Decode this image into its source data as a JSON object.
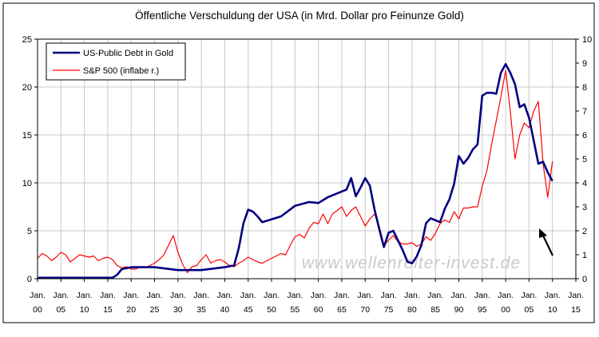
{
  "chart_data": {
    "type": "line",
    "title": "Öffentliche Verschuldung der USA (in Mrd. Dollar pro Feinunze Gold)",
    "watermark": "www.wellenreiter-invest.de",
    "x_tick_labels": [
      [
        "Jan.",
        "00"
      ],
      [
        "Jan.",
        "05"
      ],
      [
        "Jan.",
        "10"
      ],
      [
        "Jan.",
        "15"
      ],
      [
        "Jan.",
        "20"
      ],
      [
        "Jan.",
        "25"
      ],
      [
        "Jan.",
        "30"
      ],
      [
        "Jan.",
        "35"
      ],
      [
        "Jan.",
        "40"
      ],
      [
        "Jan.",
        "45"
      ],
      [
        "Jan.",
        "50"
      ],
      [
        "Jan.",
        "55"
      ],
      [
        "Jan.",
        "60"
      ],
      [
        "Jan.",
        "65"
      ],
      [
        "Jan.",
        "70"
      ],
      [
        "Jan.",
        "75"
      ],
      [
        "Jan.",
        "80"
      ],
      [
        "Jan.",
        "85"
      ],
      [
        "Jan.",
        "90"
      ],
      [
        "Jan.",
        "95"
      ],
      [
        "Jan.",
        "00"
      ],
      [
        "Jan.",
        "05"
      ],
      [
        "Jan.",
        "10"
      ],
      [
        "Jan.",
        "15"
      ]
    ],
    "xlim": [
      1900,
      2015
    ],
    "y_left": {
      "ticks": [
        "0",
        "5",
        "10",
        "15",
        "20",
        "25"
      ],
      "lim": [
        0,
        25
      ]
    },
    "y_right": {
      "ticks": [
        "0",
        "1",
        "2",
        "3",
        "4",
        "5",
        "6",
        "7",
        "8",
        "9",
        "10"
      ],
      "lim": [
        0,
        10
      ]
    },
    "grid": true,
    "legend_position": "top-left",
    "series": [
      {
        "name": "US-Public Debt in Gold",
        "axis": "left",
        "color": "#000080",
        "x": [
          1900,
          1916,
          1917,
          1918,
          1920,
          1925,
          1930,
          1935,
          1940,
          1942,
          1943,
          1944,
          1945,
          1946,
          1947,
          1948,
          1950,
          1952,
          1955,
          1958,
          1960,
          1962,
          1964,
          1966,
          1967,
          1968,
          1969,
          1970,
          1971,
          1972,
          1973,
          1974,
          1975,
          1976,
          1977,
          1978,
          1979,
          1980,
          1981,
          1982,
          1983,
          1984,
          1985,
          1986,
          1987,
          1988,
          1989,
          1990,
          1991,
          1992,
          1993,
          1994,
          1995,
          1996,
          1997,
          1998,
          1999,
          2000,
          2001,
          2002,
          2003,
          2004,
          2005,
          2006,
          2007,
          2008,
          2009,
          2010
        ],
        "values": [
          0.1,
          0.1,
          0.4,
          1.0,
          1.2,
          1.2,
          0.9,
          0.9,
          1.2,
          1.4,
          3.2,
          5.8,
          7.2,
          7.0,
          6.5,
          5.9,
          6.2,
          6.5,
          7.6,
          8.0,
          7.9,
          8.5,
          8.9,
          9.3,
          10.5,
          8.6,
          9.5,
          10.5,
          9.7,
          7.2,
          5.2,
          3.3,
          4.8,
          5.0,
          4.0,
          3.0,
          1.8,
          1.6,
          2.3,
          3.5,
          5.8,
          6.3,
          6.1,
          5.9,
          7.3,
          8.3,
          9.9,
          12.8,
          12.0,
          12.6,
          13.5,
          14.0,
          19.1,
          19.4,
          19.4,
          19.3,
          21.5,
          22.4,
          21.5,
          20.3,
          17.9,
          18.2,
          16.8,
          14.4,
          12.0,
          12.2,
          11.1,
          10.2
        ]
      },
      {
        "name": "S&P 500 (inflabe r.)",
        "axis": "right",
        "color": "#ff0000",
        "x": [
          1900,
          1901,
          1902,
          1903,
          1904,
          1905,
          1906,
          1907,
          1908,
          1909,
          1910,
          1911,
          1912,
          1913,
          1914,
          1915,
          1916,
          1917,
          1918,
          1919,
          1920,
          1921,
          1922,
          1923,
          1924,
          1925,
          1926,
          1927,
          1928,
          1929,
          1930,
          1931,
          1932,
          1933,
          1934,
          1935,
          1936,
          1937,
          1938,
          1939,
          1940,
          1941,
          1942,
          1943,
          1944,
          1945,
          1946,
          1947,
          1948,
          1949,
          1950,
          1951,
          1952,
          1953,
          1954,
          1955,
          1956,
          1957,
          1958,
          1959,
          1960,
          1961,
          1962,
          1963,
          1964,
          1965,
          1966,
          1967,
          1968,
          1969,
          1970,
          1971,
          1972,
          1973,
          1974,
          1975,
          1976,
          1977,
          1978,
          1979,
          1980,
          1981,
          1982,
          1983,
          1984,
          1985,
          1986,
          1987,
          1988,
          1989,
          1990,
          1991,
          1992,
          1993,
          1994,
          1995,
          1996,
          1997,
          1998,
          1999,
          2000,
          2001,
          2002,
          2003,
          2004,
          2005,
          2006,
          2007,
          2008,
          2009,
          2010
        ],
        "values": [
          0.85,
          1.05,
          0.95,
          0.75,
          0.9,
          1.1,
          1.0,
          0.7,
          0.85,
          1.0,
          0.95,
          0.9,
          0.95,
          0.75,
          0.85,
          0.9,
          0.8,
          0.55,
          0.45,
          0.5,
          0.4,
          0.4,
          0.5,
          0.45,
          0.55,
          0.65,
          0.8,
          1.0,
          1.4,
          1.8,
          1.1,
          0.6,
          0.25,
          0.5,
          0.55,
          0.8,
          1.0,
          0.65,
          0.75,
          0.8,
          0.7,
          0.55,
          0.5,
          0.65,
          0.75,
          0.9,
          0.8,
          0.7,
          0.65,
          0.75,
          0.85,
          0.95,
          1.05,
          1.0,
          1.4,
          1.75,
          1.85,
          1.7,
          2.1,
          2.35,
          2.3,
          2.7,
          2.3,
          2.7,
          2.85,
          3.0,
          2.6,
          2.85,
          3.0,
          2.6,
          2.2,
          2.5,
          2.7,
          2.2,
          1.4,
          1.6,
          1.8,
          1.55,
          1.45,
          1.45,
          1.5,
          1.35,
          1.45,
          1.75,
          1.6,
          1.9,
          2.3,
          2.45,
          2.35,
          2.8,
          2.5,
          2.95,
          2.95,
          3.0,
          3.0,
          3.85,
          4.5,
          5.6,
          6.6,
          7.6,
          8.7,
          7.0,
          5.0,
          6.0,
          6.5,
          6.3,
          7.0,
          7.4,
          4.8,
          3.4,
          4.9
        ]
      }
    ]
  },
  "annotation": {
    "type": "arrow",
    "direction": "up-left",
    "color": "#000000"
  }
}
